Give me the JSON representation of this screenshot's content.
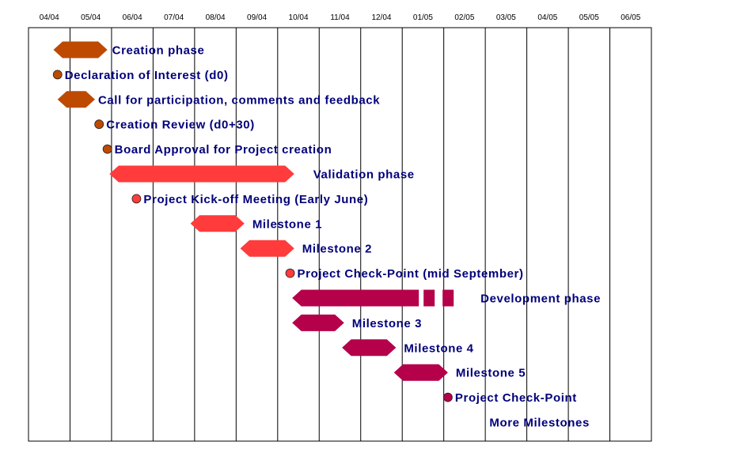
{
  "colors": {
    "creation": "#bd4a00",
    "validation": "#ff3b3b",
    "development": "#b5004a",
    "grid": "#000000",
    "label": "#00007a"
  },
  "chart_data": {
    "type": "gantt",
    "title": "",
    "months": [
      "04/04",
      "05/04",
      "06/04",
      "07/04",
      "08/04",
      "09/04",
      "10/04",
      "11/04",
      "12/04",
      "01/05",
      "02/05",
      "03/05",
      "04/05",
      "05/05",
      "06/05"
    ],
    "grid": true,
    "rows": [
      {
        "label": "Creation phase",
        "kind": "bar",
        "start": 0.6,
        "end": 1.9,
        "color": "creation"
      },
      {
        "label": "Declaration of Interest (d0)",
        "kind": "milestone",
        "at": 0.7,
        "color": "creation"
      },
      {
        "label": "Call for participation, comments and feedback",
        "kind": "bar",
        "start": 0.7,
        "end": 1.6,
        "color": "creation"
      },
      {
        "label": "Creation Review (d0+30)",
        "kind": "milestone",
        "at": 1.7,
        "color": "creation"
      },
      {
        "label": "Board Approval for Project creation",
        "kind": "milestone",
        "at": 1.9,
        "color": "creation"
      },
      {
        "label": "Validation phase",
        "kind": "bar",
        "start": 1.95,
        "end": 6.4,
        "color": "validation"
      },
      {
        "label": "Project Kick-off Meeting (Early June)",
        "kind": "milestone",
        "at": 2.6,
        "color": "validation"
      },
      {
        "label": "Milestone 1",
        "kind": "bar",
        "start": 3.9,
        "end": 5.2,
        "color": "validation"
      },
      {
        "label": "Milestone 2",
        "kind": "bar",
        "start": 5.1,
        "end": 6.4,
        "color": "validation"
      },
      {
        "label": "Project Check-Point (mid September)",
        "kind": "milestone",
        "at": 6.3,
        "color": "validation"
      },
      {
        "label": "Development phase",
        "kind": "bar",
        "start": 6.35,
        "end": 9.4,
        "dashed_end": 10.6,
        "color": "development"
      },
      {
        "label": "Milestone 3",
        "kind": "bar",
        "start": 6.35,
        "end": 7.6,
        "color": "development"
      },
      {
        "label": "Milestone 4",
        "kind": "bar",
        "start": 7.55,
        "end": 8.85,
        "color": "development"
      },
      {
        "label": "Milestone 5",
        "kind": "bar",
        "start": 8.8,
        "end": 10.1,
        "color": "development"
      },
      {
        "label": "Project Check-Point",
        "kind": "milestone",
        "at": 10.1,
        "color": "development"
      },
      {
        "label": "More Milestones",
        "kind": "none",
        "at": 11.1
      }
    ]
  }
}
